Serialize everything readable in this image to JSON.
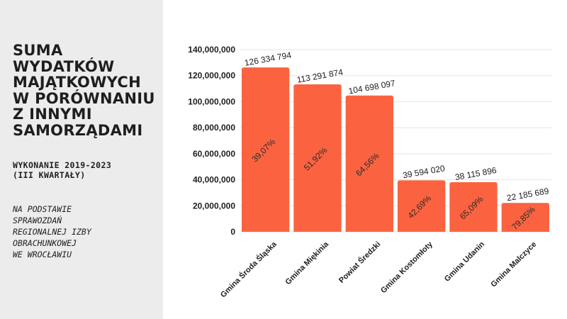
{
  "sidebar": {
    "title_lines": [
      "SUMA",
      "WYDATKÓW",
      "MAJĄTKOWYCH",
      "W PORÓWNANIU",
      "Z INNYMI",
      "SAMORZĄDAMI"
    ],
    "subtitle_lines": [
      "WYKONANIE 2019-2023",
      "(III KWARTAŁY)"
    ],
    "source_lines": [
      "NA PODSTAWIE",
      "SPRAWOZDAŃ",
      "REGIONALNEJ IZBY",
      "OBRACHUNKOWEJ",
      "WE WROCŁAWIU"
    ]
  },
  "chart_data": {
    "type": "bar",
    "categories": [
      "Gmina Środa Śląska",
      "Gmina Miękinia",
      "Powiat Średzki",
      "Gmina Kostomłoty",
      "Gmina Udanin",
      "Gmina Malczyce"
    ],
    "values": [
      126334794,
      113291874,
      104698097,
      39594020,
      38115896,
      22185689
    ],
    "value_labels": [
      "126 334 794",
      "113 291 874",
      "104 698 097",
      "39 594 020",
      "38 115 896",
      "22 185 689"
    ],
    "percent_labels": [
      "39,07%",
      "51,92%",
      "64,56%",
      "42,69%",
      "65,09%",
      "79,85%"
    ],
    "y_ticks": [
      0,
      20000000,
      40000000,
      60000000,
      80000000,
      100000000,
      120000000,
      140000000
    ],
    "y_tick_labels": [
      "0",
      "20,000,000",
      "40,000,000",
      "60,000,000",
      "80,000,000",
      "100,000,000",
      "120,000,000",
      "140,000,000"
    ],
    "ylim": [
      0,
      140000000
    ],
    "grid": true,
    "bar_color": "#fb6340",
    "grid_color": "#e3e3e3"
  }
}
